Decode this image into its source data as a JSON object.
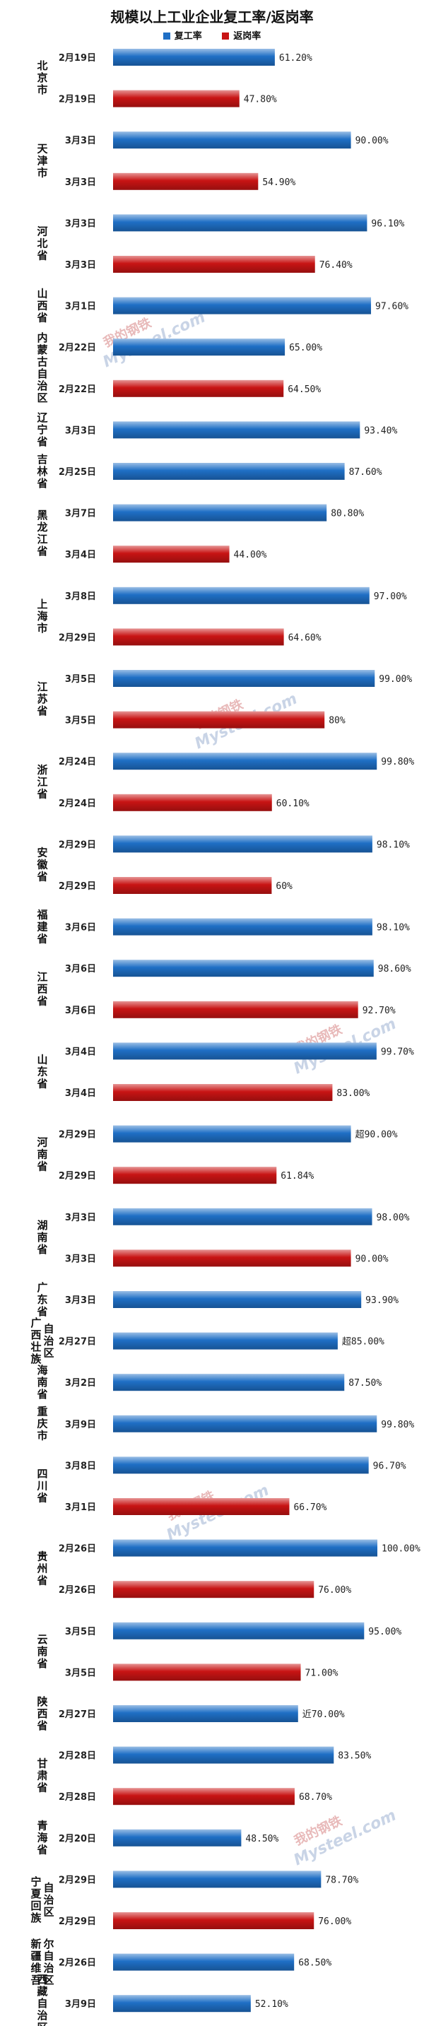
{
  "title": "规模以上工业企业复工率/返岗率",
  "legend": [
    {
      "name": "复工率",
      "color": "#1f6fc5"
    },
    {
      "name": "返岗率",
      "color": "#c81414"
    }
  ],
  "watermark": {
    "text": "Mysteel.com",
    "badge": "我的钢铁"
  },
  "chart_data": {
    "type": "bar",
    "orientation": "horizontal",
    "title": "规模以上工业企业复工率/返岗率",
    "series": [
      {
        "name": "复工率",
        "color": "#1f6fc5"
      },
      {
        "name": "返岗率",
        "color": "#c81414"
      }
    ],
    "xlim": [
      0,
      100
    ],
    "grid": false,
    "legend_position": "top",
    "rows": [
      {
        "series": "复工率",
        "date": "2月19日",
        "value": 61.2,
        "label": "61.20%"
      },
      {
        "series": "返岗率",
        "date": "2月19日",
        "value": 47.8,
        "label": "47.80%"
      },
      {
        "series": "复工率",
        "date": "3月3日",
        "value": 90.0,
        "label": "90.00%"
      },
      {
        "series": "返岗率",
        "date": "3月3日",
        "value": 54.9,
        "label": "54.90%"
      },
      {
        "series": "复工率",
        "date": "3月3日",
        "value": 96.1,
        "label": "96.10%"
      },
      {
        "series": "返岗率",
        "date": "3月3日",
        "value": 76.4,
        "label": "76.40%"
      },
      {
        "series": "复工率",
        "date": "3月1日",
        "value": 97.6,
        "label": "97.60%"
      },
      {
        "series": "复工率",
        "date": "2月22日",
        "value": 65.0,
        "label": "65.00%"
      },
      {
        "series": "返岗率",
        "date": "2月22日",
        "value": 64.5,
        "label": "64.50%"
      },
      {
        "series": "复工率",
        "date": "3月3日",
        "value": 93.4,
        "label": "93.40%"
      },
      {
        "series": "复工率",
        "date": "2月25日",
        "value": 87.6,
        "label": "87.60%"
      },
      {
        "series": "复工率",
        "date": "3月7日",
        "value": 80.8,
        "label": "80.80%"
      },
      {
        "series": "返岗率",
        "date": "3月4日",
        "value": 44.0,
        "label": "44.00%"
      },
      {
        "series": "复工率",
        "date": "3月8日",
        "value": 97.0,
        "label": "97.00%"
      },
      {
        "series": "返岗率",
        "date": "2月29日",
        "value": 64.6,
        "label": "64.60%"
      },
      {
        "series": "复工率",
        "date": "3月5日",
        "value": 99.0,
        "label": "99.00%"
      },
      {
        "series": "返岗率",
        "date": "3月5日",
        "value": 80.0,
        "label": "80%"
      },
      {
        "series": "复工率",
        "date": "2月24日",
        "value": 99.8,
        "label": "99.80%"
      },
      {
        "series": "返岗率",
        "date": "2月24日",
        "value": 60.1,
        "label": "60.10%"
      },
      {
        "series": "复工率",
        "date": "2月29日",
        "value": 98.1,
        "label": "98.10%"
      },
      {
        "series": "返岗率",
        "date": "2月29日",
        "value": 60.0,
        "label": "60%"
      },
      {
        "series": "复工率",
        "date": "3月6日",
        "value": 98.1,
        "label": "98.10%"
      },
      {
        "series": "复工率",
        "date": "3月6日",
        "value": 98.6,
        "label": "98.60%"
      },
      {
        "series": "返岗率",
        "date": "3月6日",
        "value": 92.7,
        "label": "92.70%"
      },
      {
        "series": "复工率",
        "date": "3月4日",
        "value": 99.7,
        "label": "99.70%"
      },
      {
        "series": "返岗率",
        "date": "3月4日",
        "value": 83.0,
        "label": "83.00%"
      },
      {
        "series": "复工率",
        "date": "2月29日",
        "value": 90.0,
        "label": "超90.00%"
      },
      {
        "series": "返岗率",
        "date": "2月29日",
        "value": 61.84,
        "label": "61.84%"
      },
      {
        "series": "复工率",
        "date": "3月3日",
        "value": 98.0,
        "label": "98.00%"
      },
      {
        "series": "返岗率",
        "date": "3月3日",
        "value": 90.0,
        "label": "90.00%"
      },
      {
        "series": "复工率",
        "date": "3月3日",
        "value": 93.9,
        "label": "93.90%"
      },
      {
        "series": "复工率",
        "date": "2月27日",
        "value": 85.0,
        "label": "超85.00%"
      },
      {
        "series": "复工率",
        "date": "3月2日",
        "value": 87.5,
        "label": "87.50%"
      },
      {
        "series": "复工率",
        "date": "3月9日",
        "value": 99.8,
        "label": "99.80%"
      },
      {
        "series": "复工率",
        "date": "3月8日",
        "value": 96.7,
        "label": "96.70%"
      },
      {
        "series": "返岗率",
        "date": "3月1日",
        "value": 66.7,
        "label": "66.70%"
      },
      {
        "series": "复工率",
        "date": "2月26日",
        "value": 100.0,
        "label": "100.00%"
      },
      {
        "series": "返岗率",
        "date": "2月26日",
        "value": 76.0,
        "label": "76.00%"
      },
      {
        "series": "复工率",
        "date": "3月5日",
        "value": 95.0,
        "label": "95.00%"
      },
      {
        "series": "返岗率",
        "date": "3月5日",
        "value": 71.0,
        "label": "71.00%"
      },
      {
        "series": "复工率",
        "date": "2月27日",
        "value": 70.0,
        "label": "近70.00%"
      },
      {
        "series": "复工率",
        "date": "2月28日",
        "value": 83.5,
        "label": "83.50%"
      },
      {
        "series": "返岗率",
        "date": "2月28日",
        "value": 68.7,
        "label": "68.70%"
      },
      {
        "series": "复工率",
        "date": "2月20日",
        "value": 48.5,
        "label": "48.50%"
      },
      {
        "series": "复工率",
        "date": "2月29日",
        "value": 78.7,
        "label": "78.70%"
      },
      {
        "series": "返岗率",
        "date": "2月29日",
        "value": 76.0,
        "label": "76.00%"
      },
      {
        "series": "复工率",
        "date": "2月26日",
        "value": 68.5,
        "label": "68.50%"
      },
      {
        "series": "复工率",
        "date": "3月9日",
        "value": 52.1,
        "label": "52.10%"
      }
    ],
    "provinces": [
      {
        "name": "北京市",
        "from": 0,
        "to": 1
      },
      {
        "name": "天津市",
        "from": 2,
        "to": 3
      },
      {
        "name": "河北省",
        "from": 4,
        "to": 5
      },
      {
        "name": "山西省",
        "from": 6,
        "to": 6
      },
      {
        "name": "内蒙古自治区",
        "from": 7,
        "to": 8
      },
      {
        "name": "辽宁省",
        "from": 9,
        "to": 9
      },
      {
        "name": "吉林省",
        "from": 10,
        "to": 10
      },
      {
        "name": "黑龙江省",
        "from": 11,
        "to": 12
      },
      {
        "name": "上海市",
        "from": 13,
        "to": 14
      },
      {
        "name": "江苏省",
        "from": 15,
        "to": 16
      },
      {
        "name": "浙江省",
        "from": 17,
        "to": 18
      },
      {
        "name": "安徽省",
        "from": 19,
        "to": 20
      },
      {
        "name": "福建省",
        "from": 21,
        "to": 21
      },
      {
        "name": "江西省",
        "from": 22,
        "to": 23
      },
      {
        "name": "山东省",
        "from": 24,
        "to": 25
      },
      {
        "name": "河南省",
        "from": 26,
        "to": 27
      },
      {
        "name": "湖南省",
        "from": 28,
        "to": 29
      },
      {
        "name": "广东省",
        "from": 30,
        "to": 30
      },
      {
        "name": "广西壮族自治区",
        "from": 31,
        "to": 31
      },
      {
        "name": "海南省",
        "from": 32,
        "to": 32
      },
      {
        "name": "重庆市",
        "from": 33,
        "to": 33
      },
      {
        "name": "四川省",
        "from": 34,
        "to": 35
      },
      {
        "name": "贵州省",
        "from": 36,
        "to": 37
      },
      {
        "name": "云南省",
        "from": 38,
        "to": 39
      },
      {
        "name": "陕西省",
        "from": 40,
        "to": 40
      },
      {
        "name": "甘肃省",
        "from": 41,
        "to": 42
      },
      {
        "name": "青海省",
        "from": 43,
        "to": 43
      },
      {
        "name": "宁夏回族自治区",
        "from": 44,
        "to": 45
      },
      {
        "name": "新疆维吾尔自治区",
        "from": 46,
        "to": 46
      },
      {
        "name": "西藏自治区",
        "from": 47,
        "to": 47
      }
    ]
  }
}
